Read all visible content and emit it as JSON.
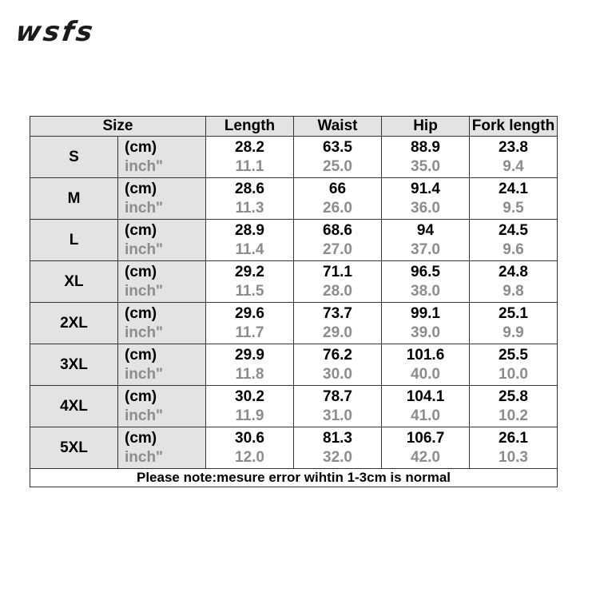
{
  "brand": {
    "logo_text": "wsfs"
  },
  "headers": [
    "Size",
    "Length",
    "Waist",
    "Hip",
    "Fork length"
  ],
  "unit_labels": {
    "cm": "(cm)",
    "inch": "inch\""
  },
  "rows": [
    {
      "size": "S",
      "cm": [
        "28.2",
        "63.5",
        "88.9",
        "23.8"
      ],
      "inch": [
        "11.1",
        "25.0",
        "35.0",
        "9.4"
      ]
    },
    {
      "size": "M",
      "cm": [
        "28.6",
        "66",
        "91.4",
        "24.1"
      ],
      "inch": [
        "11.3",
        "26.0",
        "36.0",
        "9.5"
      ]
    },
    {
      "size": "L",
      "cm": [
        "28.9",
        "68.6",
        "94",
        "24.5"
      ],
      "inch": [
        "11.4",
        "27.0",
        "37.0",
        "9.6"
      ]
    },
    {
      "size": "XL",
      "cm": [
        "29.2",
        "71.1",
        "96.5",
        "24.8"
      ],
      "inch": [
        "11.5",
        "28.0",
        "38.0",
        "9.8"
      ]
    },
    {
      "size": "2XL",
      "cm": [
        "29.6",
        "73.7",
        "99.1",
        "25.1"
      ],
      "inch": [
        "11.7",
        "29.0",
        "39.0",
        "9.9"
      ]
    },
    {
      "size": "3XL",
      "cm": [
        "29.9",
        "76.2",
        "101.6",
        "25.5"
      ],
      "inch": [
        "11.8",
        "30.0",
        "40.0",
        "10.0"
      ]
    },
    {
      "size": "4XL",
      "cm": [
        "30.2",
        "78.7",
        "104.1",
        "25.8"
      ],
      "inch": [
        "11.9",
        "31.0",
        "41.0",
        "10.2"
      ]
    },
    {
      "size": "5XL",
      "cm": [
        "30.6",
        "81.3",
        "106.7",
        "26.1"
      ],
      "inch": [
        "12.0",
        "32.0",
        "42.0",
        "10.3"
      ]
    }
  ],
  "note": "Please note:mesure error wihtin 1-3cm is normal"
}
